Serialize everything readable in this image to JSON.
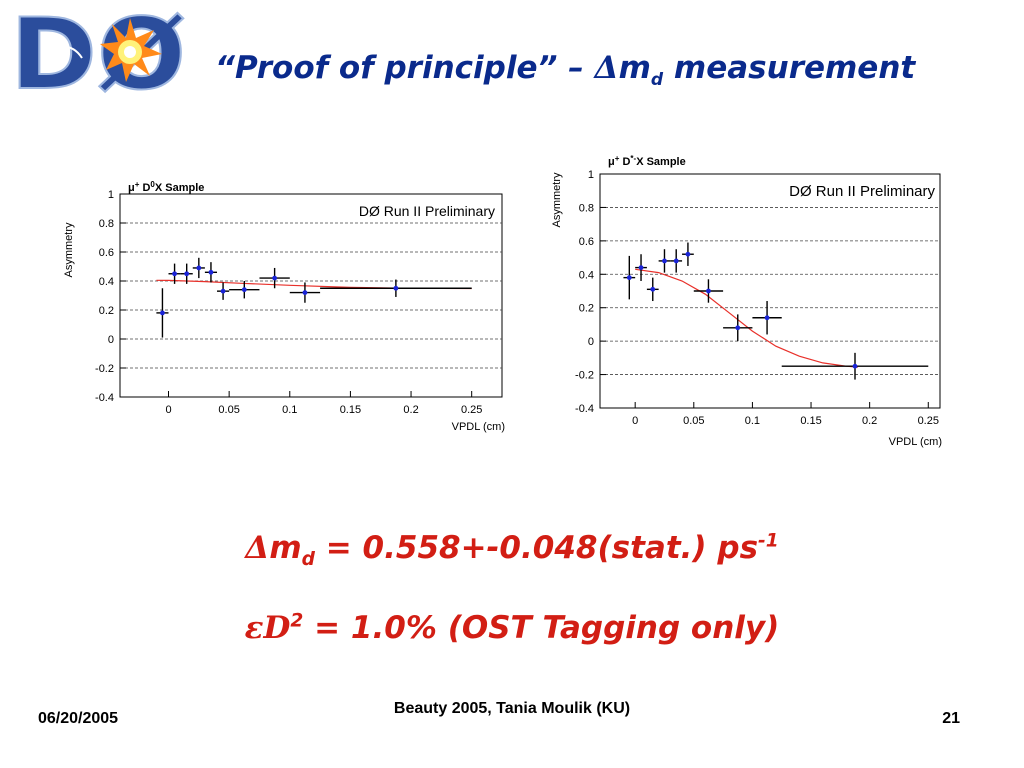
{
  "slide": {
    "title_quote": "“Proof of principle” –",
    "title_delta": "Δ",
    "title_m": "m",
    "title_sub": "d",
    "title_rest": "measurement",
    "logo_text": "DØ",
    "result1": {
      "delta": "Δ",
      "m": "m",
      "sub": "d",
      "text": " = 0.558+-0.048(stat.) ps",
      "sup": "-1"
    },
    "result2": {
      "eps": "ε",
      "d": "D",
      "sup": "2",
      "text": " = 1.0% (OST Tagging only)"
    },
    "footer_date": "06/20/2005",
    "footer_center": "Beauty 2005, Tania Moulik (KU)",
    "footer_page": "21",
    "colors": {
      "title": "#0a2a8c",
      "result": "#d21e14",
      "points": "#1a24d8",
      "fit": "#e8302a"
    }
  },
  "chart_data": [
    {
      "type": "scatter",
      "title": "μ+ D0X Sample",
      "title_mu": "μ",
      "title_plus": "+",
      "title_D": " D",
      "title_sup": "0",
      "title_rest": "X Sample",
      "annotation": "DØ Run II Preliminary",
      "xlabel": "VPDL (cm)",
      "ylabel": "Asymmetry",
      "xlim": [
        -0.04,
        0.275
      ],
      "ylim": [
        -0.4,
        1.0
      ],
      "xticks": [
        "0",
        "0.05",
        "0.1",
        "0.15",
        "0.2",
        "0.25"
      ],
      "xtick_values": [
        0,
        0.05,
        0.1,
        0.15,
        0.2,
        0.25
      ],
      "yticks": [
        "1",
        "0.8",
        "0.6",
        "0.4",
        "0.2",
        "0",
        "-0.2",
        "-0.4"
      ],
      "ytick_values": [
        1,
        0.8,
        0.6,
        0.4,
        0.2,
        0,
        -0.2,
        -0.4
      ],
      "grid": "horizontal dashed",
      "points": [
        {
          "x": -0.005,
          "y": 0.18,
          "xerr": 0.005,
          "yerr": 0.17
        },
        {
          "x": 0.005,
          "y": 0.45,
          "xerr": 0.005,
          "yerr": 0.07
        },
        {
          "x": 0.015,
          "y": 0.45,
          "xerr": 0.005,
          "yerr": 0.07
        },
        {
          "x": 0.025,
          "y": 0.49,
          "xerr": 0.005,
          "yerr": 0.07
        },
        {
          "x": 0.035,
          "y": 0.46,
          "xerr": 0.005,
          "yerr": 0.07
        },
        {
          "x": 0.045,
          "y": 0.33,
          "xerr": 0.005,
          "yerr": 0.06
        },
        {
          "x": 0.0625,
          "y": 0.34,
          "xerr": 0.0125,
          "yerr": 0.06
        },
        {
          "x": 0.0875,
          "y": 0.42,
          "xerr": 0.0125,
          "yerr": 0.07
        },
        {
          "x": 0.1125,
          "y": 0.32,
          "xerr": 0.0125,
          "yerr": 0.07
        },
        {
          "x": 0.1875,
          "y": 0.35,
          "xerr": 0.0625,
          "yerr": 0.06
        }
      ],
      "fit": {
        "x": [
          -0.01,
          0.0,
          0.03,
          0.06,
          0.1,
          0.15,
          0.2,
          0.25
        ],
        "y": [
          0.405,
          0.404,
          0.396,
          0.384,
          0.37,
          0.356,
          0.35,
          0.348
        ]
      }
    },
    {
      "type": "scatter",
      "title": "μ+ D*-X Sample",
      "title_mu": "μ",
      "title_plus": "+",
      "title_D": " D",
      "title_sup": "*-",
      "title_rest": "X Sample",
      "annotation": "DØ Run II Preliminary",
      "xlabel": "VPDL (cm)",
      "ylabel": "Asymmetry",
      "xlim": [
        -0.03,
        0.26
      ],
      "ylim": [
        -0.4,
        1.0
      ],
      "xticks": [
        "0",
        "0.05",
        "0.1",
        "0.15",
        "0.2",
        "0.25"
      ],
      "xtick_values": [
        0,
        0.05,
        0.1,
        0.15,
        0.2,
        0.25
      ],
      "yticks": [
        "1",
        "0.8",
        "0.6",
        "0.4",
        "0.2",
        "0",
        "-0.2",
        "-0.4"
      ],
      "ytick_values": [
        1,
        0.8,
        0.6,
        0.4,
        0.2,
        0,
        -0.2,
        -0.4
      ],
      "grid": "horizontal dashed",
      "points": [
        {
          "x": -0.005,
          "y": 0.38,
          "xerr": 0.005,
          "yerr": 0.13
        },
        {
          "x": 0.005,
          "y": 0.44,
          "xerr": 0.005,
          "yerr": 0.08
        },
        {
          "x": 0.015,
          "y": 0.31,
          "xerr": 0.005,
          "yerr": 0.07
        },
        {
          "x": 0.025,
          "y": 0.48,
          "xerr": 0.005,
          "yerr": 0.07
        },
        {
          "x": 0.035,
          "y": 0.48,
          "xerr": 0.005,
          "yerr": 0.07
        },
        {
          "x": 0.045,
          "y": 0.52,
          "xerr": 0.005,
          "yerr": 0.07
        },
        {
          "x": 0.0625,
          "y": 0.3,
          "xerr": 0.0125,
          "yerr": 0.07
        },
        {
          "x": 0.0875,
          "y": 0.08,
          "xerr": 0.0125,
          "yerr": 0.08
        },
        {
          "x": 0.1125,
          "y": 0.14,
          "xerr": 0.0125,
          "yerr": 0.1
        },
        {
          "x": 0.1875,
          "y": -0.15,
          "xerr": 0.0625,
          "yerr": 0.08
        }
      ],
      "fit": {
        "x": [
          0.0,
          0.02,
          0.04,
          0.06,
          0.08,
          0.1,
          0.12,
          0.14,
          0.16,
          0.18,
          0.19
        ],
        "y": [
          0.43,
          0.41,
          0.36,
          0.28,
          0.17,
          0.06,
          -0.03,
          -0.09,
          -0.13,
          -0.15,
          -0.155
        ]
      }
    }
  ]
}
